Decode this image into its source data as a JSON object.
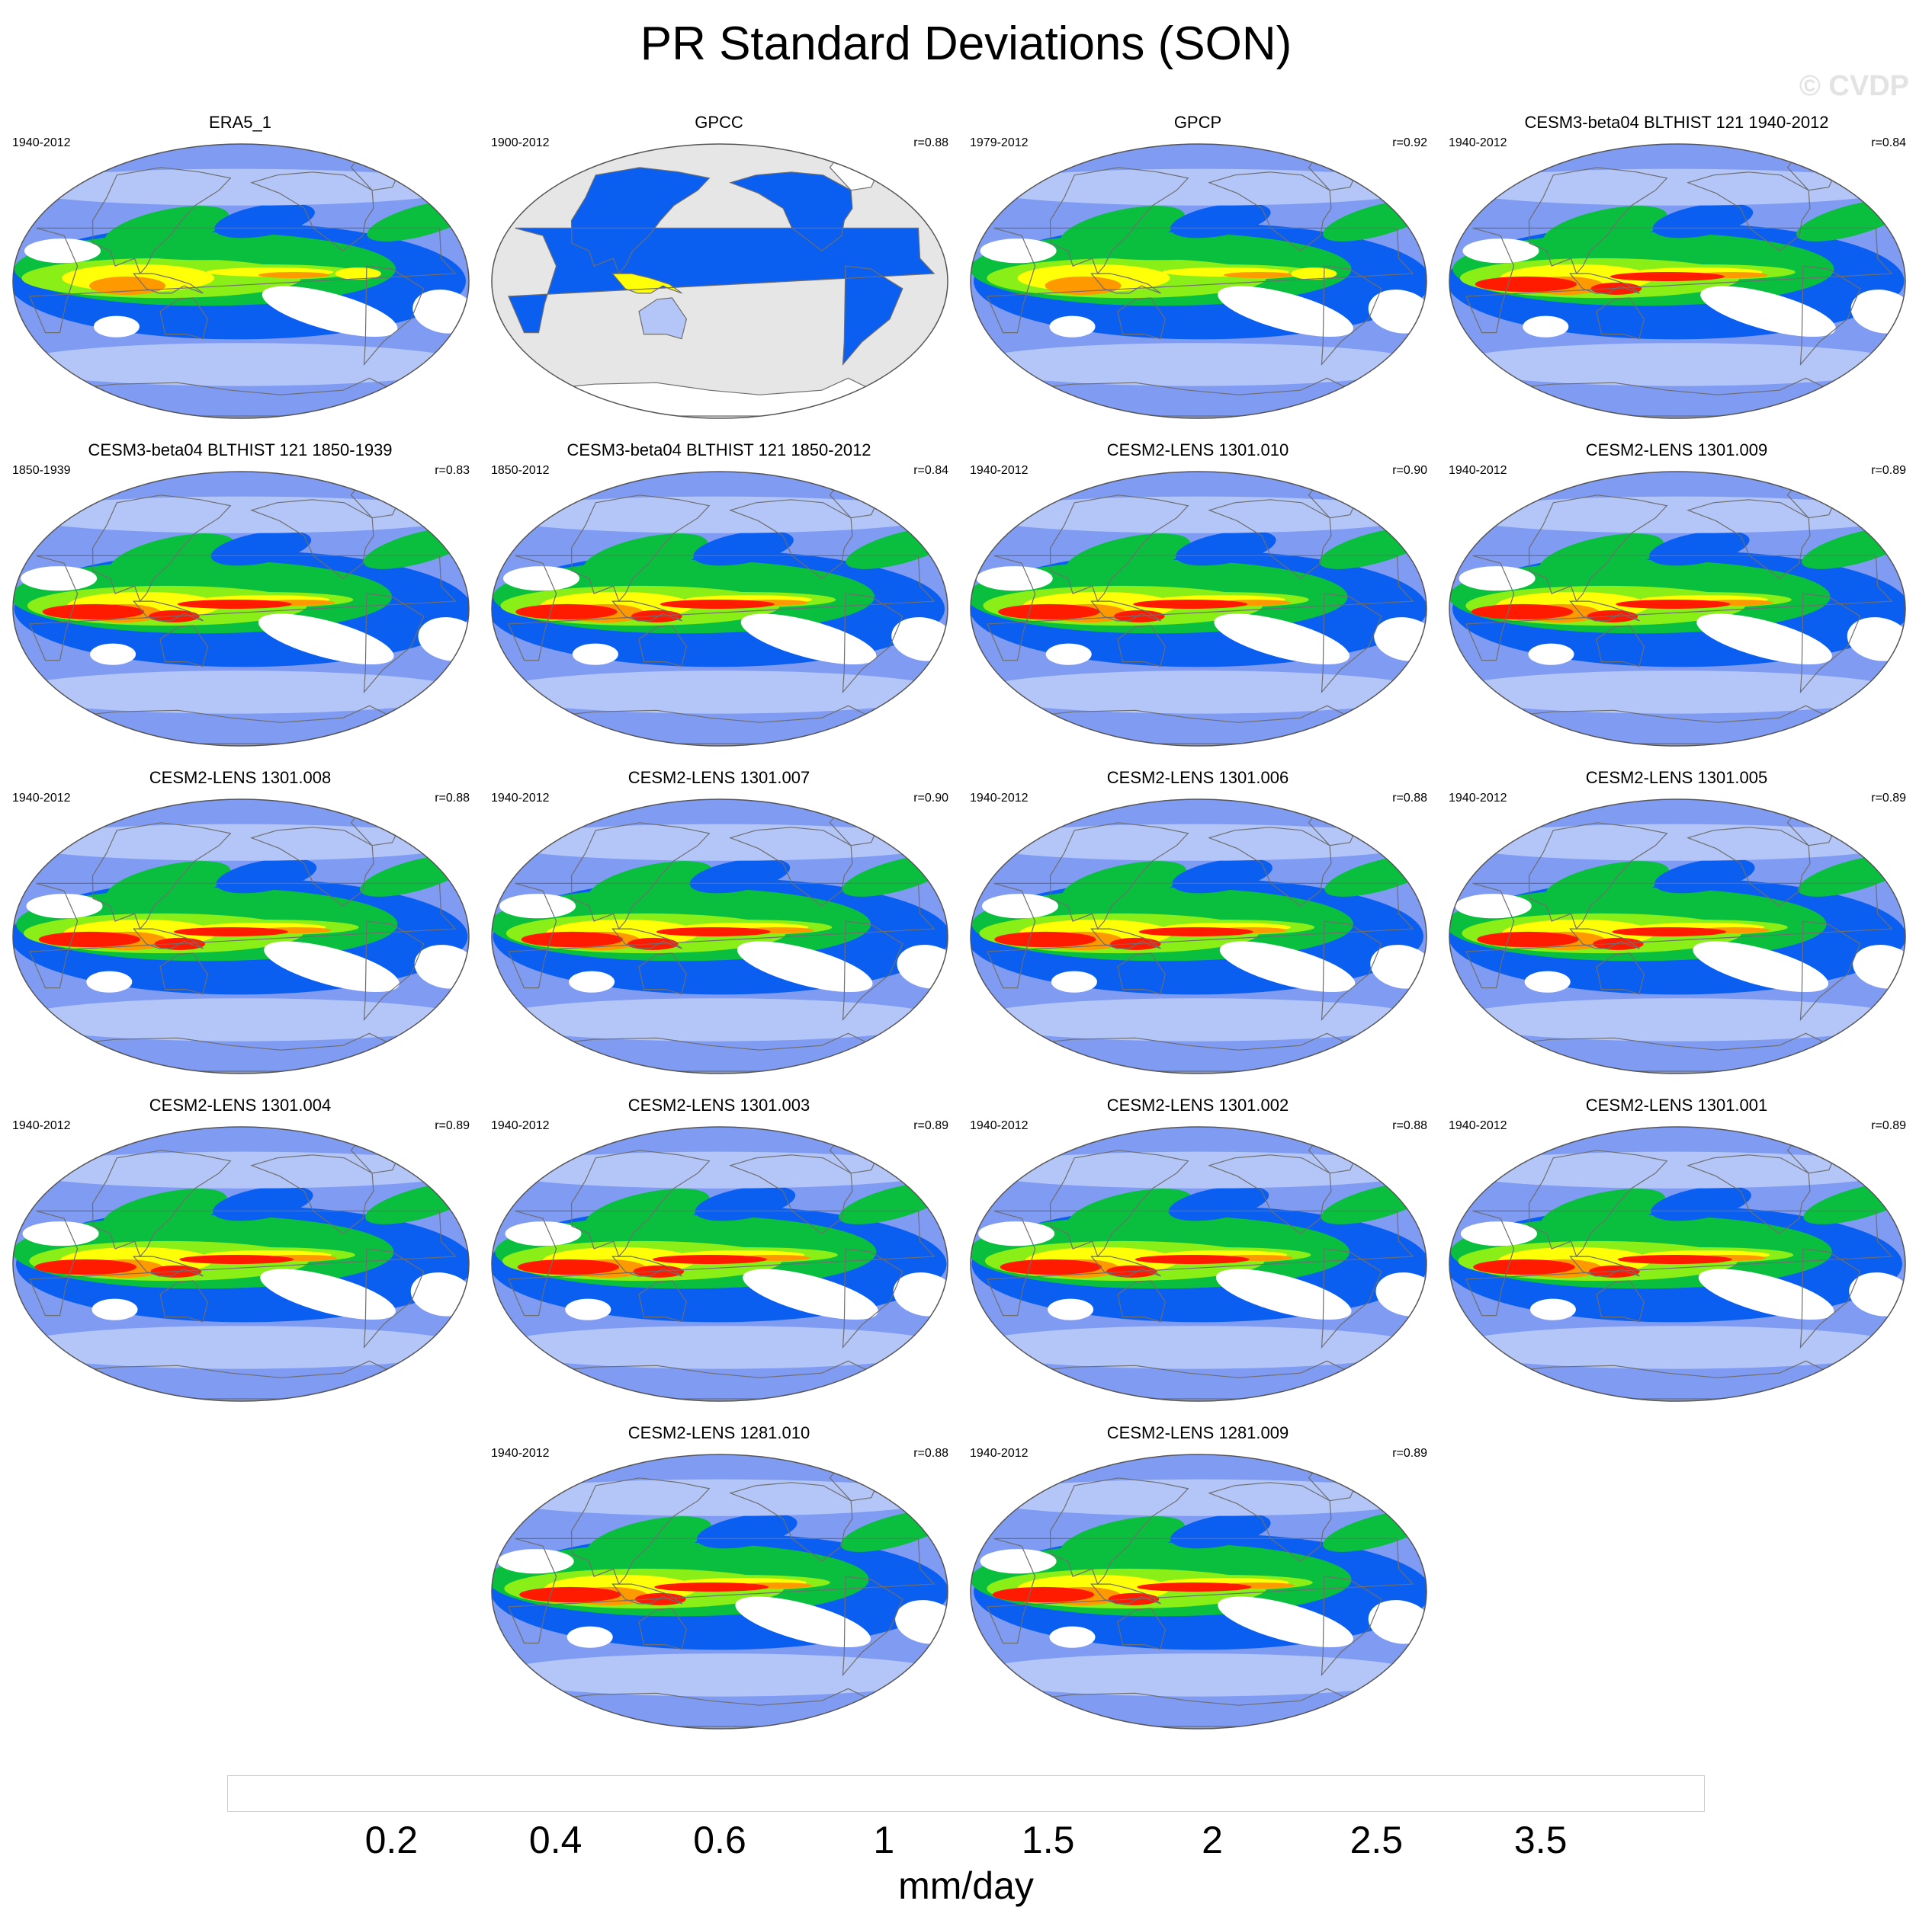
{
  "title": "PR Standard Deviations (SON)",
  "watermark": "© CVDP",
  "panels": [
    {
      "title": "ERA5_1",
      "period": "1940-2012",
      "r": "",
      "style": "obs"
    },
    {
      "title": "GPCC",
      "period": "1900-2012",
      "r": "r=0.88",
      "style": "land"
    },
    {
      "title": "GPCP",
      "period": "1979-2012",
      "r": "r=0.92",
      "style": "obs"
    },
    {
      "title": "CESM3-beta04 BLTHIST 121 1940-2012",
      "period": "1940-2012",
      "r": "r=0.84",
      "style": "model"
    },
    {
      "title": "CESM3-beta04 BLTHIST 121 1850-1939",
      "period": "1850-1939",
      "r": "r=0.83",
      "style": "model"
    },
    {
      "title": "CESM3-beta04 BLTHIST 121 1850-2012",
      "period": "1850-2012",
      "r": "r=0.84",
      "style": "model"
    },
    {
      "title": "CESM2-LENS 1301.010",
      "period": "1940-2012",
      "r": "r=0.90",
      "style": "model"
    },
    {
      "title": "CESM2-LENS 1301.009",
      "period": "1940-2012",
      "r": "r=0.89",
      "style": "model"
    },
    {
      "title": "CESM2-LENS 1301.008",
      "period": "1940-2012",
      "r": "r=0.88",
      "style": "model"
    },
    {
      "title": "CESM2-LENS 1301.007",
      "period": "1940-2012",
      "r": "r=0.90",
      "style": "model"
    },
    {
      "title": "CESM2-LENS 1301.006",
      "period": "1940-2012",
      "r": "r=0.88",
      "style": "model"
    },
    {
      "title": "CESM2-LENS 1301.005",
      "period": "1940-2012",
      "r": "r=0.89",
      "style": "model"
    },
    {
      "title": "CESM2-LENS 1301.004",
      "period": "1940-2012",
      "r": "r=0.89",
      "style": "model"
    },
    {
      "title": "CESM2-LENS 1301.003",
      "period": "1940-2012",
      "r": "r=0.89",
      "style": "model"
    },
    {
      "title": "CESM2-LENS 1301.002",
      "period": "1940-2012",
      "r": "r=0.88",
      "style": "model"
    },
    {
      "title": "CESM2-LENS 1301.001",
      "period": "1940-2012",
      "r": "r=0.89",
      "style": "model"
    },
    {
      "title": "CESM2-LENS 1281.010",
      "period": "1940-2012",
      "r": "r=0.88",
      "style": "model"
    },
    {
      "title": "CESM2-LENS 1281.009",
      "period": "1940-2012",
      "r": "r=0.89",
      "style": "model"
    }
  ],
  "colorbar": {
    "units": "mm/day",
    "tick_labels": [
      "0.2",
      "0.4",
      "0.6",
      "1",
      "1.5",
      "2",
      "2.5",
      "3.5"
    ],
    "colors": [
      "#ffffff",
      "#b3c6f7",
      "#7f9bf2",
      "#0a5ef0",
      "#0bbf3e",
      "#89ef17",
      "#ffff08",
      "#ff9900",
      "#ff1a00"
    ]
  },
  "missing_color": "#e6e6e6",
  "coastline_color": "#6e6e6e"
}
